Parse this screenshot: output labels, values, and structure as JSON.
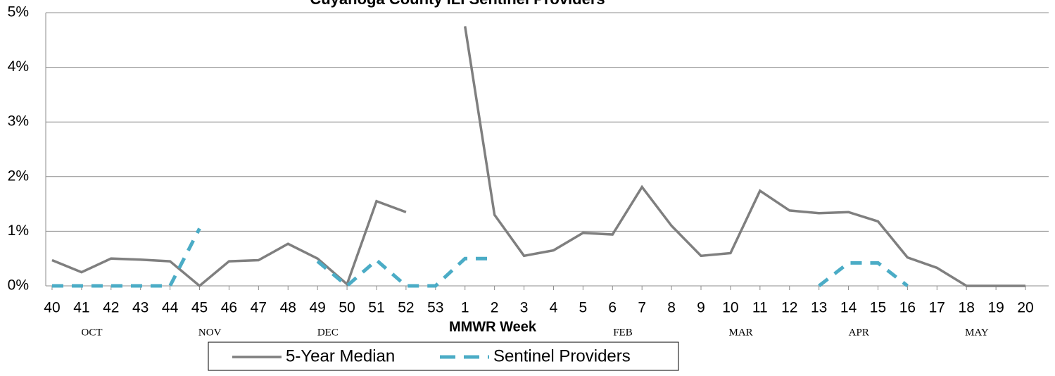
{
  "chart_data": {
    "type": "line",
    "title": "Cuyahoga County ILI Sentinel Providers",
    "x_label": "MMWR Week",
    "categories": [
      "40",
      "41",
      "42",
      "43",
      "44",
      "45",
      "46",
      "47",
      "48",
      "49",
      "50",
      "51",
      "52",
      "53",
      "1",
      "2",
      "3",
      "4",
      "5",
      "6",
      "7",
      "8",
      "9",
      "10",
      "11",
      "12",
      "13",
      "14",
      "15",
      "16",
      "17",
      "18",
      "19",
      "20"
    ],
    "month_labels": [
      null,
      "OCT",
      null,
      null,
      null,
      "NOV",
      null,
      null,
      null,
      "DEC",
      null,
      null,
      null,
      null,
      null,
      null,
      null,
      null,
      null,
      "FEB",
      null,
      null,
      null,
      "MAR",
      null,
      null,
      null,
      "APR",
      null,
      null,
      null,
      "MAY",
      null,
      null
    ],
    "series": [
      {
        "name": "5-Year Median",
        "color": "#7f7f7f",
        "dash": false,
        "values": [
          0.47,
          0.25,
          0.5,
          0.48,
          0.45,
          0,
          0.45,
          0.47,
          0.77,
          0.5,
          0.03,
          1.55,
          1.35,
          null,
          4.75,
          1.3,
          0.55,
          0.65,
          0.97,
          0.94,
          1.81,
          1.1,
          0.55,
          0.6,
          1.74,
          1.38,
          1.33,
          1.35,
          1.18,
          0.52,
          0.33,
          0,
          0,
          0
        ]
      },
      {
        "name": "Sentinel Providers",
        "color": "#4bacc6",
        "dash": true,
        "values": [
          0,
          0,
          0,
          0,
          0,
          1.05,
          null,
          null,
          null,
          0.45,
          0,
          0.47,
          0,
          0,
          0.5,
          0.5,
          null,
          null,
          null,
          null,
          null,
          null,
          null,
          null,
          null,
          null,
          0,
          0.42,
          0.42,
          0,
          null,
          null,
          null,
          null
        ]
      }
    ],
    "ylim": [
      0,
      5
    ],
    "yticks": [
      {
        "value": 0,
        "label": "0%"
      },
      {
        "value": 1,
        "label": "1%"
      },
      {
        "value": 2,
        "label": "2%"
      },
      {
        "value": 3,
        "label": "3%"
      },
      {
        "value": 4,
        "label": "4%"
      },
      {
        "value": 5,
        "label": "5%"
      }
    ],
    "grid": true
  }
}
